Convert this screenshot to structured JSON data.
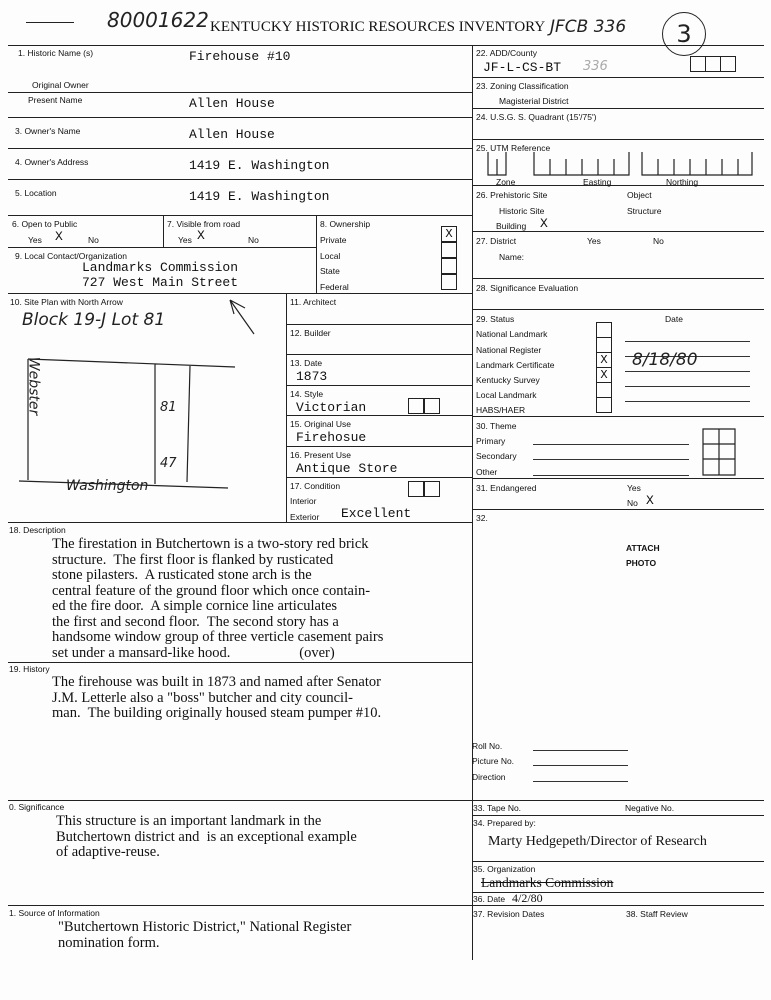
{
  "header": {
    "title": "KENTUCKY HISTORIC RESOURCES INVENTORY",
    "id_handwritten": "80001622",
    "code_handwritten": "JFCB 336",
    "page_circle": "3"
  },
  "fields": {
    "f1": {
      "label": "1. Historic Name (s)",
      "value": "Firehouse #10"
    },
    "original_owner": {
      "label": "Original Owner"
    },
    "present_name": {
      "label": "Present Name",
      "value": "Allen House"
    },
    "f3": {
      "label": "3. Owner's Name",
      "value": "Allen House"
    },
    "f4": {
      "label": "4. Owner's Address",
      "value": "1419 E. Washington"
    },
    "f5": {
      "label": "5. Location",
      "value": "1419 E. Washington"
    },
    "f6": {
      "label": "6. Open to Public",
      "yes": "Yes",
      "no": "No",
      "mark": "X"
    },
    "f7": {
      "label": "7. Visible from road",
      "yes": "Yes",
      "no": "No",
      "mark": "X"
    },
    "f8": {
      "label": "8. Ownership",
      "options": [
        "Private",
        "Local",
        "State",
        "Federal"
      ],
      "mark": "X"
    },
    "f9": {
      "label": "9. Local Contact/Organization",
      "line1": "Landmarks Commission",
      "line2": "727 West Main Street"
    },
    "f10": {
      "label": "10. Site Plan with North Arrow",
      "note": "Block 19-J   Lot 81",
      "street_left": "Webster",
      "street_bottom": "Washington",
      "dim1": "81",
      "dim2": "47"
    },
    "f11": {
      "label": "11. Architect"
    },
    "f12": {
      "label": "12. Builder"
    },
    "f13": {
      "label": "13. Date",
      "value": "1873"
    },
    "f14": {
      "label": "14. Style",
      "value": "Victorian"
    },
    "f15": {
      "label": "15. Original Use",
      "value": "Firehosue"
    },
    "f16": {
      "label": "16. Present Use",
      "value": "Antique Store"
    },
    "f17": {
      "label": "17. Condition",
      "interior": "Interior",
      "exterior": "Exterior",
      "exterior_value": "Excellent"
    },
    "f18": {
      "label": "18. Description",
      "text": "The firestation in Butchertown is a two-story red brick\nstructure.  The first floor is flanked by rusticated\nstone pilasters.  A rusticated stone arch is the\ncentral feature of the ground floor which once contain-\ned the fire door.  A simple cornice line articulates\nthe first and second floor.  The second story has a\nhandsome window group of three verticle casement pairs\nset under a mansard-like hood.                   (over)"
    },
    "f19": {
      "label": "19. History",
      "text": "The firehouse was built in 1873 and named after Senator\nJ.M. Letterle also a \"boss\" butcher and city council-\nman.  The building originally housed steam pumper #10."
    },
    "f20": {
      "label": "0. Significance",
      "text": "This structure is an important landmark in the\nButchertown district and  is an exceptional example\nof adaptive-reuse."
    },
    "f21": {
      "label": "1. Source of Information",
      "text": "\"Butchertown Historic District,\" National Register\nnomination form."
    },
    "f22": {
      "label": "22. ADD/County",
      "value": "JF-L-CS-BT",
      "handwritten": "336"
    },
    "f23": {
      "label": "23. Zoning Classification",
      "sub": "Magisterial District"
    },
    "f24": {
      "label": "24. U.S.G. S. Quadrant (15'/75')"
    },
    "f25": {
      "label": "25. UTM Reference",
      "zone": "Zone",
      "easting": "Easting",
      "northing": "Northing"
    },
    "f26": {
      "label": "26. Prehistoric Site",
      "historic": "Historic Site",
      "building": "Building",
      "object": "Object",
      "structure": "Structure",
      "mark": "X"
    },
    "f27": {
      "label": "27. District",
      "yes": "Yes",
      "no": "No",
      "name": "Name:"
    },
    "f28": {
      "label": "28. Significance Evaluation"
    },
    "f29": {
      "label": "29. Status",
      "date_label": "Date",
      "items": [
        "National Landmark",
        "National Register",
        "Landmark Certificate",
        "Kentucky Survey",
        "Local Landmark",
        "HABS/HAER"
      ],
      "landmark_certificate_mark": "X",
      "kentucky_survey_mark": "X",
      "landmark_certificate_date": "8/18/80"
    },
    "f30": {
      "label": "30. Theme",
      "items": [
        "Primary",
        "Secondary",
        "Other"
      ]
    },
    "f31": {
      "label": "31. Endangered",
      "yes": "Yes",
      "no": "No",
      "mark": "X"
    },
    "f32": {
      "label": "32.",
      "attach1": "ATTACH",
      "attach2": "PHOTO",
      "roll": "Roll No.",
      "picture": "Picture No.",
      "direction": "Direction"
    },
    "f33": {
      "label": "33. Tape No.",
      "negative": "Negative No."
    },
    "f34": {
      "label": "34. Prepared by:",
      "value": "Marty Hedgepeth/Director of Research"
    },
    "f35": {
      "label": "35. Organization",
      "value": "Landmarks Commission"
    },
    "f36": {
      "label": "36. Date",
      "value": "4/2/80"
    },
    "f37": {
      "label": "37. Revision Dates"
    },
    "f38": {
      "label": "38. Staff Review"
    }
  }
}
